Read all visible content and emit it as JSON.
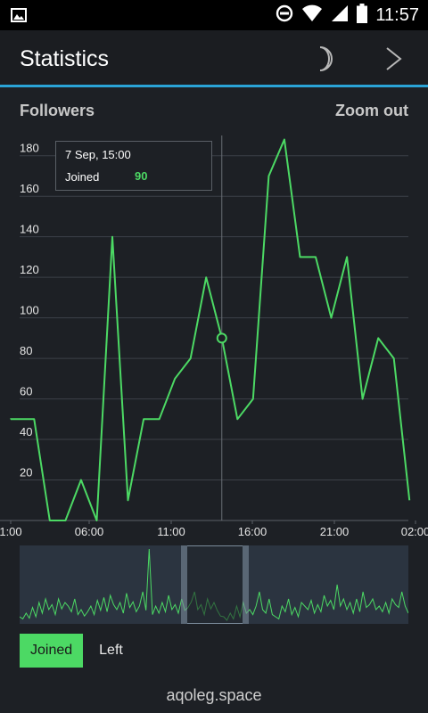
{
  "status_bar": {
    "time": "11:57"
  },
  "app_bar": {
    "title": "Statistics"
  },
  "chart_header": {
    "title": "Followers",
    "zoom_out": "Zoom out"
  },
  "chart_data": {
    "type": "line",
    "title": "Followers",
    "series": [
      {
        "name": "Joined",
        "color": "#4cd964",
        "values": [
          50,
          50,
          0,
          0,
          20,
          0,
          140,
          10,
          50,
          50,
          70,
          80,
          120,
          90,
          50,
          60,
          170,
          188,
          130,
          130,
          100,
          130,
          60,
          90,
          80,
          10
        ]
      }
    ],
    "x_tick_labels": [
      "1:00",
      "06:00",
      "11:00",
      "16:00",
      "21:00",
      "02:00"
    ],
    "y_ticks": [
      20,
      40,
      60,
      80,
      100,
      120,
      140,
      160,
      180
    ],
    "ylim": [
      0,
      190
    ],
    "grid": true
  },
  "tooltip": {
    "date": "7 Sep, 15:00",
    "series_name": "Joined",
    "value": "90"
  },
  "navigator": {
    "values": [
      5,
      2,
      10,
      3,
      18,
      5,
      25,
      10,
      30,
      15,
      22,
      8,
      30,
      16,
      25,
      20,
      12,
      30,
      8,
      15,
      6,
      12,
      20,
      8,
      28,
      14,
      32,
      12,
      35,
      22,
      15,
      25,
      10,
      38,
      18,
      26,
      12,
      20,
      40,
      14,
      100,
      8,
      20,
      10,
      25,
      12,
      35,
      15,
      22,
      10,
      30,
      14,
      18,
      26,
      40,
      15,
      22,
      8,
      30,
      16,
      25,
      14,
      6,
      5,
      0,
      10,
      2,
      20,
      5,
      25,
      10,
      15,
      8,
      20,
      40,
      15,
      10,
      30,
      8,
      5,
      2,
      20,
      12,
      30,
      8,
      18,
      5,
      25,
      20,
      15,
      28,
      10,
      22,
      12,
      35,
      20,
      28,
      15,
      50,
      20,
      30,
      15,
      25,
      10,
      30,
      12,
      40,
      18,
      22,
      30,
      15,
      20,
      12,
      25,
      10,
      30,
      22,
      18,
      40,
      20,
      10
    ]
  },
  "tabs": {
    "joined": "Joined",
    "left": "Left"
  },
  "footer": {
    "text": "aqoleg.space"
  }
}
